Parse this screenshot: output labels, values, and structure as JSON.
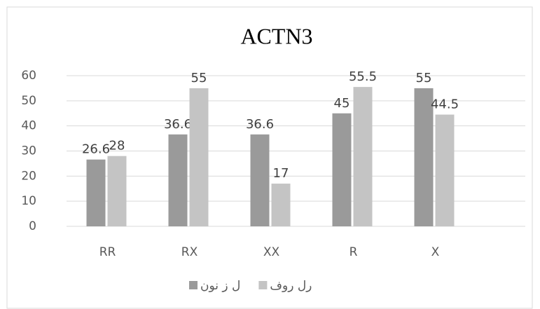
{
  "chart_data": {
    "type": "bar",
    "title": "ACTN3",
    "categories": [
      "RR",
      "RX",
      "XX",
      "R",
      "X"
    ],
    "series": [
      {
        "name": "ل ز نون",
        "color": "#9a9a9a",
        "values": [
          26.6,
          36.6,
          36.6,
          45,
          55
        ]
      },
      {
        "name": "رل روف",
        "color": "#c4c4c4",
        "values": [
          28,
          55,
          17,
          55.5,
          44.5
        ]
      }
    ],
    "ylim": [
      0,
      60
    ],
    "yticks": [
      0,
      10,
      20,
      30,
      40,
      50,
      60
    ],
    "grid": true,
    "legend": "bottom"
  }
}
